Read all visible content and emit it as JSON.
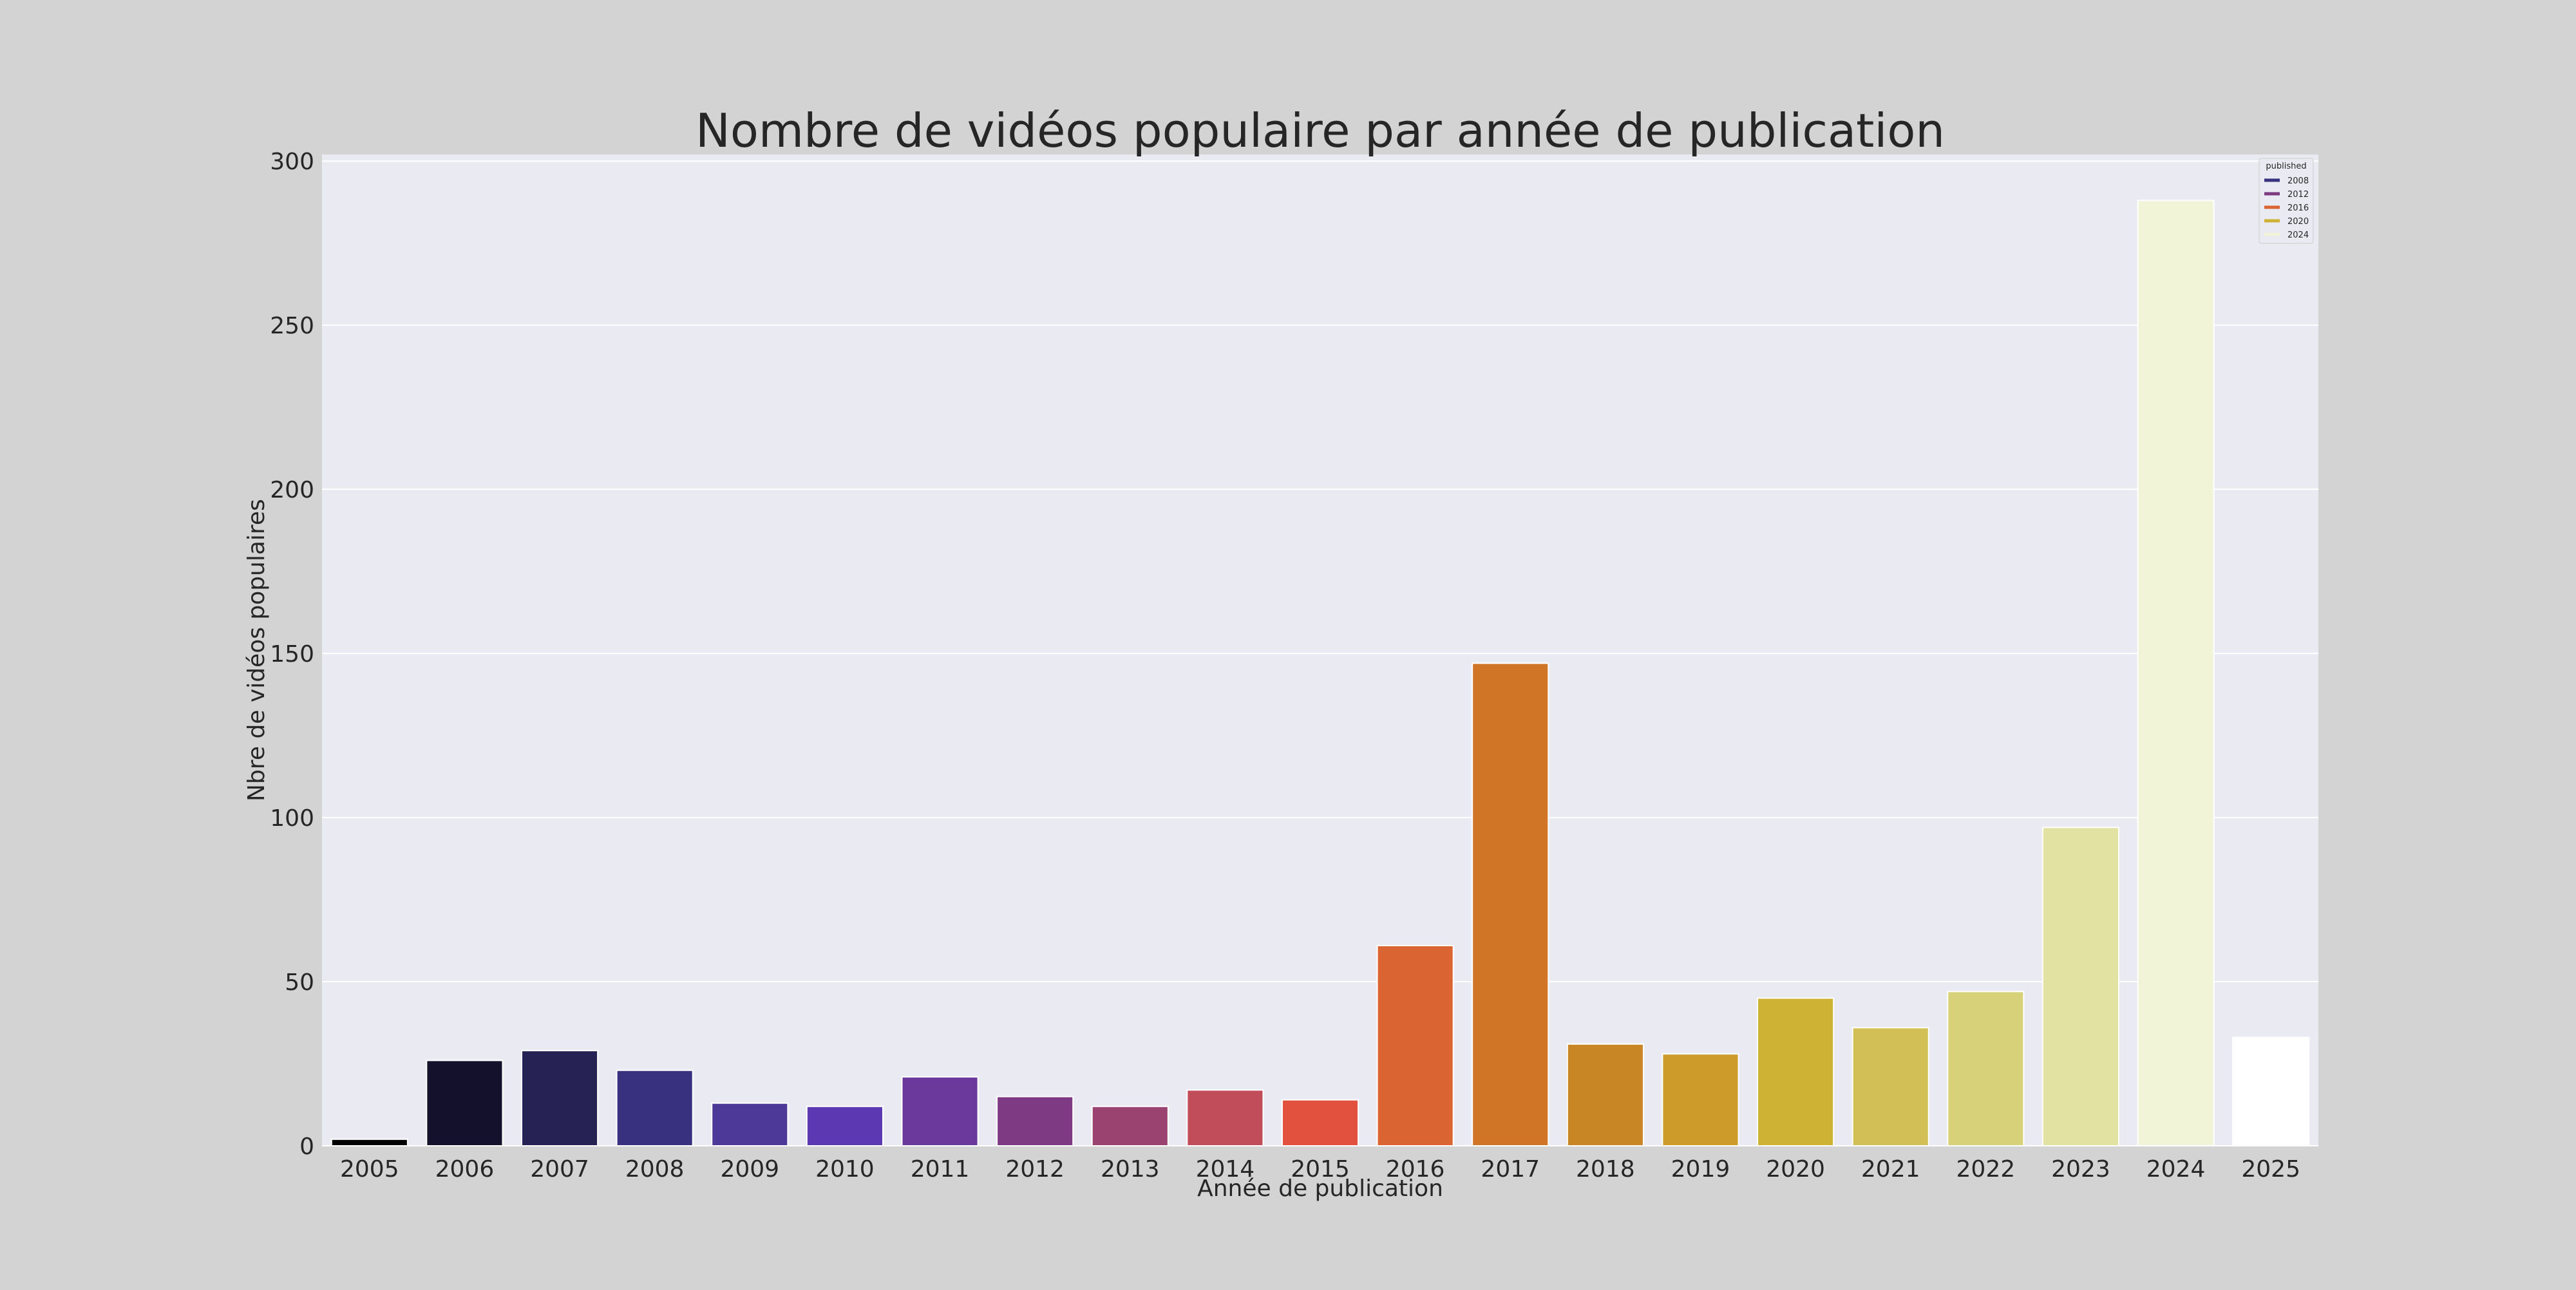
{
  "page": {
    "background": "#d3d3d3"
  },
  "chart_data": {
    "type": "bar",
    "title": "Nombre de vidéos populaire par année de publication",
    "xlabel": "Année de publication",
    "ylabel": "Nbre de vidéos populaires",
    "ylim": [
      0,
      302
    ],
    "yticks": [
      0,
      50,
      100,
      150,
      200,
      250,
      300
    ],
    "grid": true,
    "categories": [
      "2005",
      "2006",
      "2007",
      "2008",
      "2009",
      "2010",
      "2011",
      "2012",
      "2013",
      "2014",
      "2015",
      "2016",
      "2017",
      "2018",
      "2019",
      "2020",
      "2021",
      "2022",
      "2023",
      "2024",
      "2025"
    ],
    "values": [
      2,
      26,
      29,
      23,
      13,
      12,
      21,
      15,
      12,
      17,
      14,
      61,
      147,
      31,
      28,
      45,
      36,
      47,
      97,
      288,
      33
    ],
    "colors": [
      "#000000",
      "#13112b",
      "#262254",
      "#38317f",
      "#4d3997",
      "#5c38b2",
      "#6b399b",
      "#7e3b83",
      "#9a4270",
      "#c24d5a",
      "#e2513e",
      "#da6432",
      "#d07426",
      "#c98624",
      "#cd9b29",
      "#ceb233",
      "#d2c056",
      "#d7d27a",
      "#e2e2a2",
      "#f1f4d6",
      "#ffffff"
    ],
    "plot_background": "#eaeaf2",
    "legend": {
      "title": "published",
      "placement": "top-right",
      "entries": [
        {
          "label": "2008",
          "color": "#38317f"
        },
        {
          "label": "2012",
          "color": "#7e3b83"
        },
        {
          "label": "2016",
          "color": "#da6432"
        },
        {
          "label": "2020",
          "color": "#ceb233"
        },
        {
          "label": "2024",
          "color": "#f1f4d6"
        }
      ]
    }
  }
}
